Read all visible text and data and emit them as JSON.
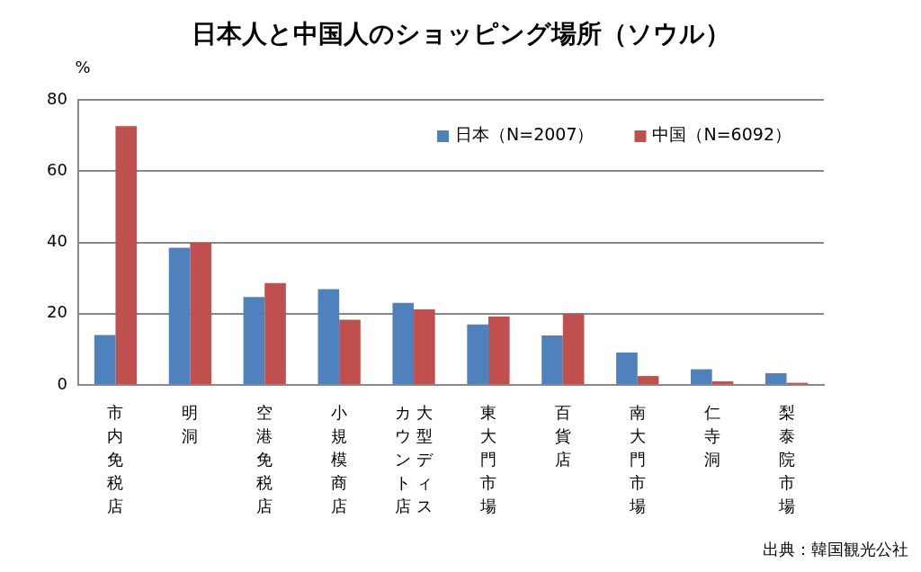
{
  "chart_data": {
    "type": "bar",
    "title": "日本人と中国人のショッピング場所（ソウル）",
    "ylabel": "%",
    "categories": [
      "市内免税店",
      "明洞",
      "空港免税店",
      "小規模商店",
      "大型ディスカウント店",
      "東大門市場",
      "百貨店",
      "南大門市場",
      "仁寺洞",
      "梨泰院市場"
    ],
    "series": [
      {
        "name": "日本（N=2007）",
        "color": "#4f81bd",
        "values": [
          14.0,
          38.5,
          24.7,
          26.9,
          23.0,
          17.0,
          13.9,
          9.1,
          4.4,
          3.3
        ]
      },
      {
        "name": "中国（N=6092）",
        "color": "#c0504d",
        "values": [
          72.6,
          39.9,
          28.6,
          18.3,
          21.2,
          19.2,
          20.0,
          2.5,
          1.0,
          0.6
        ]
      }
    ],
    "ylim": [
      0,
      80
    ],
    "yticks": [
      0,
      20,
      40,
      60,
      80
    ],
    "grid": "y",
    "legend": "top right",
    "annotations": [
      "出典：韓国観光公社"
    ]
  }
}
